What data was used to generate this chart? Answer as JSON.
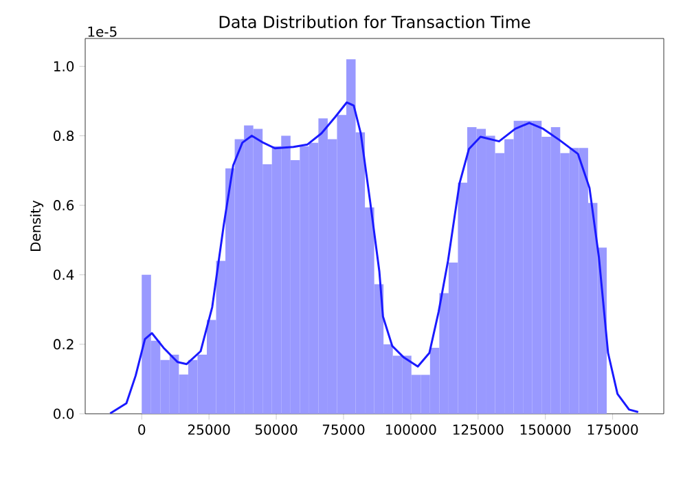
{
  "chart_data": {
    "type": "histogram",
    "title": "Data Distribution for Transaction Time",
    "ylabel": "Density",
    "annotations": [
      "1e-5"
    ],
    "xlim": [
      -21000,
      194000
    ],
    "xticks": [
      0,
      25000,
      50000,
      75000,
      100000,
      125000,
      150000,
      175000
    ],
    "ylim": [
      0,
      1.08
    ],
    "yticks": [
      {
        "value": 0,
        "label": "0.0"
      },
      {
        "value": 0.2,
        "label": "0.2"
      },
      {
        "value": 0.4,
        "label": "0.4"
      },
      {
        "value": 0.6,
        "label": "0.6"
      },
      {
        "value": 0.8,
        "label": "0.8"
      },
      {
        "value": 1.0,
        "label": "1.0"
      }
    ],
    "grid": false,
    "series": [
      {
        "color": "#9999ff",
        "bins": [
          0,
          3456,
          6912,
          10368,
          13824,
          17280,
          20736,
          24192,
          27648,
          31104,
          34560,
          38016,
          41472,
          44928,
          48384,
          51840,
          55296,
          58752,
          62208,
          65664,
          69120,
          72576,
          76032,
          79488,
          82944,
          86400,
          89856,
          93312,
          96768,
          100224,
          103680,
          107136,
          110592,
          114048,
          117504,
          120960,
          124416,
          127872,
          131328,
          134784,
          138240,
          141696,
          145152,
          148608,
          152064,
          155520,
          158976,
          162432,
          165888,
          169344,
          172800
        ],
        "values": [
          0.4,
          0.21,
          0.155,
          0.17,
          0.113,
          0.155,
          0.17,
          0.27,
          0.44,
          0.706,
          0.79,
          0.83,
          0.82,
          0.718,
          0.77,
          0.8,
          0.73,
          0.77,
          0.78,
          0.85,
          0.79,
          0.86,
          1.02,
          0.81,
          0.594,
          0.373,
          0.2,
          0.167,
          0.167,
          0.112,
          0.112,
          0.19,
          0.347,
          0.435,
          0.665,
          0.825,
          0.82,
          0.8,
          0.75,
          0.79,
          0.843,
          0.843,
          0.843,
          0.797,
          0.825,
          0.75,
          0.765,
          0.765,
          0.607,
          0.478
        ]
      },
      {
        "type": "line",
        "color": "#1a1aff",
        "x": [
          -11730,
          -5690,
          -2240,
          1200,
          3800,
          8100,
          13300,
          16700,
          21900,
          26200,
          30500,
          34000,
          37400,
          40900,
          45200,
          49500,
          56400,
          61600,
          66800,
          71900,
          76200,
          78800,
          81400,
          84900,
          88300,
          89650,
          93100,
          97400,
          102600,
          106900,
          110350,
          113800,
          118100,
          121600,
          125900,
          132800,
          138800,
          144000,
          149200,
          155200,
          162100,
          166400,
          169900,
          173300,
          176800,
          181100,
          184500
        ],
        "values": [
          0.001,
          0.03,
          0.11,
          0.215,
          0.232,
          0.19,
          0.149,
          0.143,
          0.18,
          0.307,
          0.544,
          0.715,
          0.78,
          0.8,
          0.78,
          0.764,
          0.768,
          0.775,
          0.807,
          0.854,
          0.896,
          0.887,
          0.807,
          0.61,
          0.41,
          0.28,
          0.195,
          0.162,
          0.136,
          0.175,
          0.294,
          0.439,
          0.663,
          0.762,
          0.797,
          0.784,
          0.82,
          0.837,
          0.82,
          0.788,
          0.748,
          0.65,
          0.45,
          0.175,
          0.057,
          0.012,
          0.005
        ]
      }
    ]
  }
}
